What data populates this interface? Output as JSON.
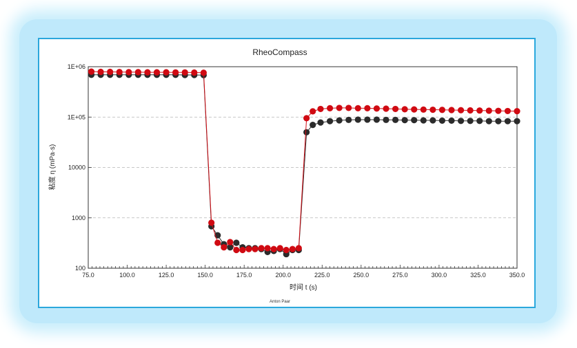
{
  "chart_data": {
    "type": "scatter",
    "title": "RheoCompass",
    "xlabel": "时间 t (s)",
    "ylabel": "粘度 η (mPa·s)",
    "credit": "Anton Paar",
    "xlim": [
      75.0,
      350.0
    ],
    "ylim": [
      100,
      1000000
    ],
    "yscale": "log",
    "grid": "horizontal dashed",
    "x_ticks": [
      "75.0",
      "100.0",
      "125.0",
      "150.0",
      "175.0",
      "200.0",
      "225.0",
      "250.0",
      "275.0",
      "300.0",
      "325.0",
      "350.0"
    ],
    "x_tick_values": [
      75,
      100,
      125,
      150,
      175,
      200,
      225,
      250,
      275,
      300,
      325,
      350
    ],
    "y_ticks": [
      "1E+06",
      "1E+05",
      "10000",
      "1000",
      "100"
    ],
    "y_tick_values": [
      1000000,
      100000,
      10000,
      1000,
      100
    ],
    "series": [
      {
        "color": "#d00a12",
        "x": [
          77,
          83,
          89,
          95,
          101,
          107,
          113,
          119,
          125,
          131,
          137,
          143,
          149,
          154,
          158,
          162,
          166,
          170,
          174,
          178,
          182,
          186,
          190,
          194,
          198,
          202,
          206,
          210,
          215,
          219,
          224,
          230,
          236,
          242,
          248,
          254,
          260,
          266,
          272,
          278,
          284,
          290,
          296,
          302,
          308,
          314,
          320,
          326,
          332,
          338,
          344,
          350
        ],
        "y": [
          800000,
          790000,
          790000,
          785000,
          780000,
          780000,
          775000,
          775000,
          775000,
          770000,
          770000,
          765000,
          760000,
          800,
          320,
          260,
          330,
          230,
          230,
          240,
          240,
          250,
          250,
          240,
          250,
          230,
          240,
          250,
          95000,
          130000,
          145000,
          150000,
          152000,
          152000,
          150000,
          150000,
          148000,
          147000,
          145000,
          143000,
          142000,
          141000,
          140000,
          139000,
          138000,
          137000,
          136000,
          135000,
          134000,
          133000,
          132000,
          131000
        ]
      },
      {
        "color": "#2b2b2b",
        "x": [
          77,
          83,
          89,
          95,
          101,
          107,
          113,
          119,
          125,
          131,
          137,
          143,
          149,
          154,
          158,
          162,
          166,
          170,
          174,
          178,
          182,
          186,
          190,
          194,
          198,
          202,
          206,
          210,
          215,
          219,
          224,
          230,
          236,
          242,
          248,
          254,
          260,
          266,
          272,
          278,
          284,
          290,
          296,
          302,
          308,
          314,
          320,
          326,
          332,
          338,
          344,
          350
        ],
        "y": [
          690000,
          690000,
          690000,
          690000,
          690000,
          690000,
          690000,
          690000,
          690000,
          690000,
          685000,
          685000,
          680000,
          680,
          450,
          300,
          260,
          320,
          260,
          250,
          250,
          240,
          210,
          220,
          240,
          190,
          230,
          230,
          50000,
          70000,
          78000,
          83000,
          86000,
          88000,
          89000,
          89000,
          89000,
          88000,
          88000,
          87000,
          87000,
          86000,
          86000,
          85000,
          85000,
          84000,
          84000,
          84000,
          83000,
          83000,
          83000,
          83000
        ]
      }
    ]
  }
}
